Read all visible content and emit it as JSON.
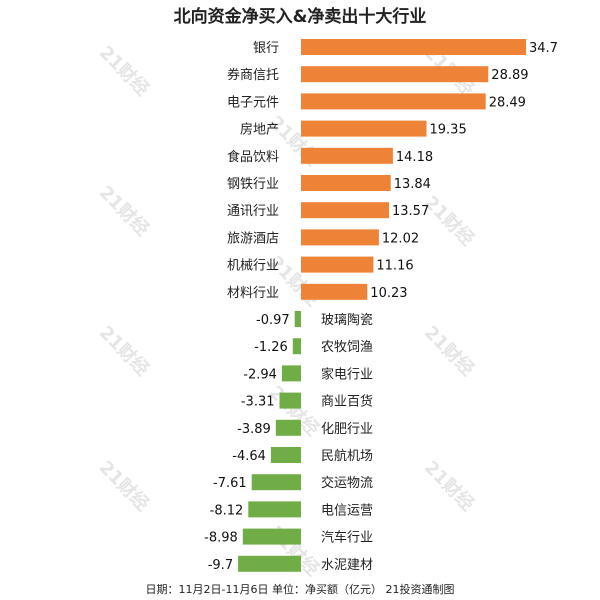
{
  "chart_data": {
    "type": "bar",
    "orientation": "horizontal",
    "title": "北向资金净买入&净卖出十大行业",
    "categories": [
      "银行",
      "券商信托",
      "电子元件",
      "房地产",
      "食品饮料",
      "钢铁行业",
      "通讯行业",
      "旅游酒店",
      "机械行业",
      "材料行业",
      "玻璃陶瓷",
      "农牧饲渔",
      "家电行业",
      "商业百货",
      "化肥行业",
      "民航机场",
      "交运物流",
      "电信运营",
      "汽车行业",
      "水泥建材"
    ],
    "values": [
      34.7,
      28.89,
      28.49,
      19.35,
      14.18,
      13.84,
      13.57,
      12.02,
      11.16,
      10.23,
      -0.97,
      -1.26,
      -2.94,
      -3.31,
      -3.89,
      -4.64,
      -7.61,
      -8.12,
      -8.98,
      -9.7
    ],
    "value_labels": [
      "34.7",
      "28.89",
      "28.49",
      "19.35",
      "14.18",
      "13.84",
      "13.57",
      "12.02",
      "11.16",
      "10.23",
      "-0.97",
      "-1.26",
      "-2.94",
      "-3.31",
      "-3.89",
      "-4.64",
      "-7.61",
      "-8.12",
      "-8.98",
      "-9.7"
    ],
    "xlim": [
      -9.7,
      34.7
    ],
    "colors": {
      "positive": "#ee8236",
      "negative": "#70ad47"
    },
    "grid": false,
    "legend": "none",
    "footer": "日期：11月2日-11月6日 单位：净买额（亿元） 21投资通制图",
    "watermark": "21财经"
  }
}
